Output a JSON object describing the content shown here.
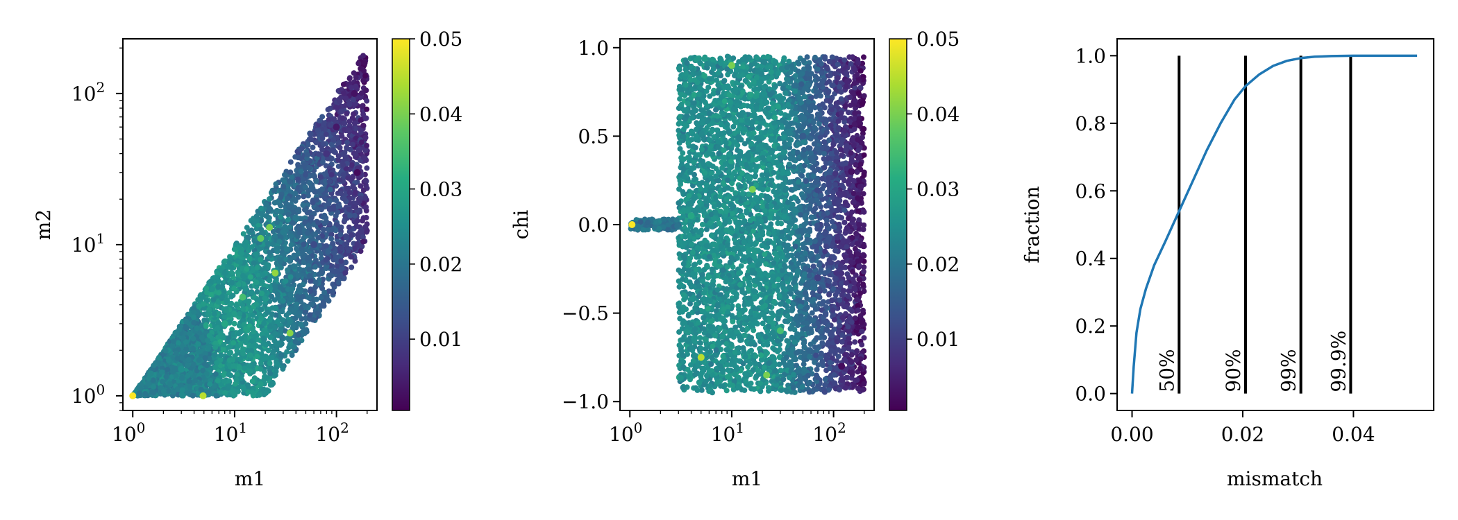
{
  "chart_data": [
    {
      "type": "scatter",
      "xlabel": "m1",
      "ylabel": "m2",
      "xscale": "log",
      "yscale": "log",
      "xlim": [
        0.8,
        250
      ],
      "ylim": [
        0.8,
        230
      ],
      "xticks": [
        1,
        10,
        100
      ],
      "yticks": [
        1,
        10,
        100
      ],
      "colormap": "viridis",
      "color_range": [
        0.0005,
        0.05
      ],
      "colorbar_ticks": [
        "0.01",
        "0.02",
        "0.03",
        "0.04",
        "0.05"
      ],
      "colorbar_tick_values": [
        0.01,
        0.02,
        0.03,
        0.04,
        0.05
      ],
      "colored_by": "mismatch",
      "region": {
        "m1_range": [
          1,
          200
        ],
        "m2_range": [
          1,
          180
        ],
        "m2_max_over_m1": 1.0,
        "m2_min_over_m1": 0.05
      },
      "points": [
        [
          1.0,
          1.0,
          0.05
        ],
        [
          4.9,
          1.0,
          0.045
        ],
        [
          22,
          13,
          0.04
        ],
        [
          18,
          11,
          0.038
        ],
        [
          25,
          6.5,
          0.042
        ],
        [
          35,
          2.6,
          0.041
        ],
        [
          12,
          4.5,
          0.035
        ],
        [
          40,
          15,
          0.02
        ],
        [
          80,
          40,
          0.008
        ],
        [
          150,
          100,
          0.003
        ],
        [
          160,
          30,
          0.002
        ],
        [
          60,
          10,
          0.012
        ],
        [
          8,
          3,
          0.03
        ],
        [
          3,
          1.5,
          0.025
        ],
        [
          100,
          60,
          0.004
        ]
      ]
    },
    {
      "type": "scatter",
      "xlabel": "m1",
      "ylabel": "chi",
      "xscale": "log",
      "xlim": [
        0.8,
        250
      ],
      "ylim": [
        -1.05,
        1.05
      ],
      "xticks": [
        1,
        10,
        100
      ],
      "yticks": [
        -1.0,
        -0.5,
        0.0,
        0.5,
        1.0
      ],
      "yticklabels": [
        "−1.0",
        "−0.5",
        "0.0",
        "0.5",
        "1.0"
      ],
      "colormap": "viridis",
      "color_range": [
        0.0005,
        0.05
      ],
      "colorbar_ticks": [
        "0.01",
        "0.02",
        "0.03",
        "0.04",
        "0.05"
      ],
      "colorbar_tick_values": [
        0.01,
        0.02,
        0.03,
        0.04,
        0.05
      ],
      "colored_by": "mismatch",
      "region": {
        "m1_range": [
          1,
          200
        ],
        "chi_range": [
          -0.95,
          0.95
        ],
        "low_mass_band": {
          "m1_range": [
            1,
            3
          ],
          "chi_range": [
            -0.03,
            0.03
          ]
        }
      },
      "points": [
        [
          1.05,
          0.0,
          0.05
        ],
        [
          5.0,
          -0.75,
          0.045
        ],
        [
          22,
          -0.85,
          0.04
        ],
        [
          16,
          0.2,
          0.04
        ],
        [
          30,
          -0.6,
          0.035
        ],
        [
          10,
          0.9,
          0.04
        ],
        [
          150,
          0.3,
          0.003
        ],
        [
          120,
          -0.8,
          0.002
        ],
        [
          50,
          0.5,
          0.015
        ],
        [
          4,
          0.05,
          0.03
        ],
        [
          70,
          -0.3,
          0.01
        ]
      ]
    },
    {
      "type": "line",
      "xlabel": "mismatch",
      "ylabel": "fraction",
      "xlim": [
        -0.0027,
        0.0545
      ],
      "ylim": [
        -0.05,
        1.05
      ],
      "xticks": [
        0.0,
        0.02,
        0.04
      ],
      "xticklabels": [
        "0.00",
        "0.02",
        "0.04"
      ],
      "yticks": [
        0.0,
        0.2,
        0.4,
        0.6,
        0.8,
        1.0
      ],
      "yticklabels": [
        "0.0",
        "0.2",
        "0.4",
        "0.6",
        "0.8",
        "1.0"
      ],
      "series": [
        {
          "color": "#1f77b4",
          "x": [
            0.0,
            0.0003,
            0.0008,
            0.0015,
            0.0025,
            0.004,
            0.006,
            0.0085,
            0.011,
            0.0135,
            0.016,
            0.0185,
            0.0205,
            0.023,
            0.0255,
            0.028,
            0.0305,
            0.033,
            0.036,
            0.04,
            0.045,
            0.0515
          ],
          "y": [
            0.0,
            0.08,
            0.18,
            0.25,
            0.31,
            0.38,
            0.45,
            0.54,
            0.63,
            0.72,
            0.8,
            0.87,
            0.91,
            0.945,
            0.97,
            0.985,
            0.993,
            0.997,
            0.999,
            1.0,
            1.0,
            1.0
          ]
        }
      ],
      "percentile_lines": [
        {
          "label": "50%",
          "x": 0.0085
        },
        {
          "label": "90%",
          "x": 0.0205
        },
        {
          "label": "99%",
          "x": 0.0305
        },
        {
          "label": "99.9%",
          "x": 0.0395
        }
      ]
    }
  ]
}
